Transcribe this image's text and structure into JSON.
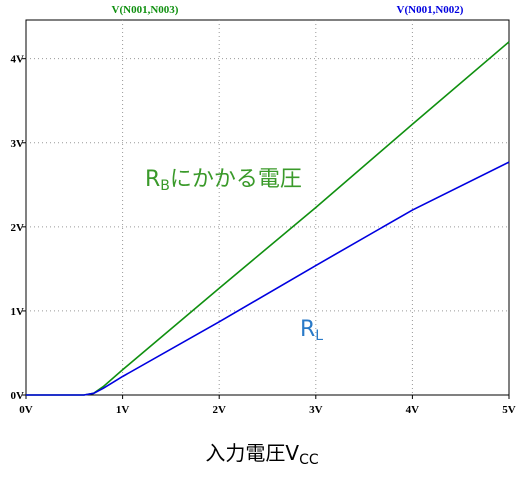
{
  "chart_data": {
    "type": "line",
    "x": [
      0,
      0.6,
      0.7,
      0.8,
      1,
      2,
      3,
      4,
      5
    ],
    "series": [
      {
        "name": "V(N001,N003)",
        "color": "#109010",
        "values": [
          0,
          0,
          0.02,
          0.1,
          0.3,
          1.27,
          2.23,
          3.22,
          4.2
        ]
      },
      {
        "name": "V(N001,N002)",
        "color": "#0000e0",
        "values": [
          0,
          0,
          0.02,
          0.08,
          0.22,
          0.87,
          1.54,
          2.2,
          2.77
        ]
      }
    ],
    "xlim": [
      0,
      5
    ],
    "xticks": [
      {
        "value": 0,
        "label": "0V"
      },
      {
        "value": 1,
        "label": "1V"
      },
      {
        "value": 2,
        "label": "2V"
      },
      {
        "value": 3,
        "label": "3V"
      },
      {
        "value": 4,
        "label": "4V"
      },
      {
        "value": 5,
        "label": "5V"
      }
    ],
    "ylim": [
      0,
      4.46
    ],
    "yticks": [
      {
        "value": 0,
        "label": "0V"
      },
      {
        "value": 1,
        "label": "1V"
      },
      {
        "value": 2,
        "label": "2V"
      },
      {
        "value": 3,
        "label": "3V"
      },
      {
        "value": 4,
        "label": "4V"
      }
    ],
    "grid": true,
    "annotations": [
      {
        "parts": [
          "R",
          "B",
          "にかかる電圧"
        ],
        "color": "#3a9a2a"
      },
      {
        "parts": [
          "R",
          "L"
        ],
        "color": "#2a7ac8"
      }
    ],
    "xlabel": [
      "入力電圧V",
      "CC"
    ]
  }
}
